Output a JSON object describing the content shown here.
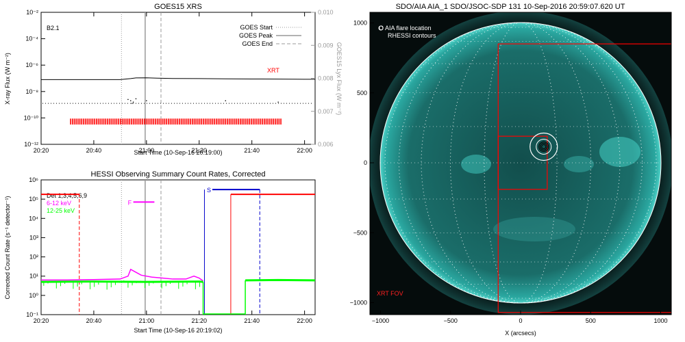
{
  "colors": {
    "black": "#000000",
    "red": "#ff0000",
    "magenta": "#ff00ff",
    "green": "#00ff00",
    "blue": "#0000cc",
    "gray": "#999999",
    "sun": "#1f9f9a"
  },
  "chart_data": [
    {
      "type": "line",
      "title": "GOES15 XRS",
      "xlabel": "Start Time (10-Sep-16 20:19:00)",
      "ylabel": "X-ray Flux (W m⁻²)",
      "y2label": "GOES15 Lyx Flux (W m⁻²)",
      "class_label": "B2.1",
      "xrt_label": "XRT",
      "x_ticks": [
        "20:20",
        "20:40",
        "21:00",
        "21:20",
        "21:40",
        "22:00"
      ],
      "x_tick_minutes": [
        20,
        40,
        60,
        80,
        100,
        120
      ],
      "y_ticks": [
        "10⁻²",
        "10⁻⁴",
        "10⁻⁶",
        "10⁻⁸",
        "10⁻¹⁰",
        "10⁻¹²"
      ],
      "y2_ticks": [
        "0.010",
        "0.009",
        "0.008",
        "0.007",
        "0.006"
      ],
      "legend": [
        {
          "label": "GOES Start",
          "style": "dotted"
        },
        {
          "label": "GOES Peak",
          "style": "solid"
        },
        {
          "label": "GOES End",
          "style": "dashed"
        }
      ],
      "goes_start_min": 50.5,
      "goes_peak_min": 59.5,
      "goes_end_min": 65.5,
      "xrt_coverage_min": [
        31,
        111
      ],
      "long_channel": {
        "x": [
          20,
          50,
          54,
          56,
          60,
          64,
          70,
          80,
          90,
          100,
          110,
          120,
          124
        ],
        "log_flux": [
          -7.1,
          -7.1,
          -7.02,
          -6.97,
          -6.96,
          -6.99,
          -7.01,
          -7.02,
          -7.04,
          -7.05,
          -7.06,
          -7.07,
          -7.07
        ]
      },
      "lyx_level": -8.9
    },
    {
      "type": "line",
      "title": "HESSI Observing Summary Count Rates, Corrected",
      "xlabel": "Start Time (10-Sep-16 20:19:02)",
      "ylabel": "Corrected Count Rate (s⁻¹ detector⁻¹)",
      "x_ticks": [
        "20:20",
        "20:40",
        "21:00",
        "21:20",
        "21:40",
        "22:00"
      ],
      "x_tick_minutes": [
        20,
        40,
        60,
        80,
        100,
        120
      ],
      "y_ticks": [
        "10⁶",
        "10⁵",
        "10⁴",
        "10³",
        "10²",
        "10¹",
        "10⁰",
        "10⁻¹"
      ],
      "series": [
        {
          "name": "6-12 keV",
          "x": [
            20,
            30,
            40,
            50,
            53,
            54,
            56,
            58,
            62,
            66,
            70,
            75,
            78,
            80,
            81.5
          ],
          "log_rate": [
            0.8,
            0.8,
            0.82,
            0.85,
            1.0,
            1.35,
            1.2,
            1.05,
            0.95,
            0.9,
            0.85,
            0.85,
            1.0,
            0.9,
            0.75
          ]
        },
        {
          "name": "12-25 keV",
          "x": [
            20,
            40,
            60,
            80,
            81.5
          ],
          "log_rate": [
            0.7,
            0.72,
            0.7,
            0.72,
            0.7
          ]
        },
        {
          "name": "12-25 keV",
          "x": [
            97.5,
            110,
            124
          ],
          "log_rate": [
            0.78,
            0.8,
            0.78
          ]
        }
      ],
      "detector_label": "Det 1,3,4,5,6,9",
      "flag_labels": {
        "F": "F",
        "S": "S"
      },
      "saa_interval_min": [
        82,
        97
      ],
      "eclipse_min": [
        92,
        124
      ],
      "f_flag_min": [
        55,
        63
      ],
      "s_flag_min": [
        85,
        103
      ]
    }
  ],
  "image_panel": {
    "title": "SDO/AIA AIA_1 SDO/JSOC-SDP 131 10-Sep-2016 20:59:07.620 UT",
    "legend_aia": "O AIA flare location",
    "legend_rhessi": "RHESSI contours",
    "xrt_fov_label": "XRT FOV",
    "xlabel": "X (arcsecs)",
    "x_ticks": [
      "−1000",
      "−500",
      "0",
      "500",
      "1000"
    ],
    "y_ticks": [
      "1000",
      "500",
      "0",
      "−500",
      "−1000"
    ],
    "tick_values": [
      -1000,
      -500,
      0,
      500,
      1000
    ],
    "flare_location_arcsec": [
      165,
      115
    ],
    "fov_small_arcsec": [
      -160,
      -190,
      190,
      190
    ],
    "fov_large_arcsec": [
      -160,
      -1070,
      1080,
      850
    ]
  }
}
